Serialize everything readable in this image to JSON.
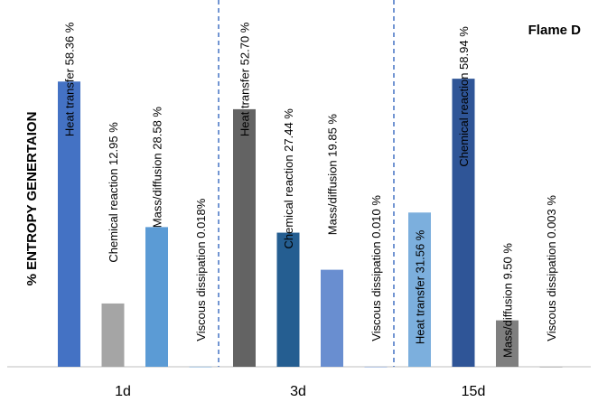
{
  "chart_data": {
    "type": "bar",
    "title": "Flame D",
    "ylabel": "% ENTROPY GENERTAION",
    "xlabel": "",
    "ylim": [
      0,
      60
    ],
    "grid": false,
    "groups": [
      {
        "category": "1d",
        "bars": [
          {
            "label": "Heat transfer 58.36 %",
            "value": 58.36,
            "color": "#4472C4"
          },
          {
            "label": "Chemical reaction  12.95 %",
            "value": 12.95,
            "color": "#A5A5A5"
          },
          {
            "label": "Mass/diffusion 28.58 %",
            "value": 28.58,
            "color": "#5B9BD5"
          },
          {
            "label": "Viscous dissipation  0.018%",
            "value": 0.018,
            "color": "#5B9BD5"
          }
        ]
      },
      {
        "category": "3d",
        "bars": [
          {
            "label": "Heat transfer 52.70 %",
            "value": 52.7,
            "color": "#636363"
          },
          {
            "label": "Chemical reaction 27.44 %",
            "value": 27.44,
            "color": "#255E91"
          },
          {
            "label": "Mass/diffusion 19.85 %",
            "value": 19.85,
            "color": "#698ED0"
          },
          {
            "label": "Viscous dissipation 0.010 %",
            "value": 0.01,
            "color": "#698ED0"
          }
        ]
      },
      {
        "category": "15d",
        "bars": [
          {
            "label": "Heat transfer 31.56 %",
            "value": 31.56,
            "color": "#7CAFDD"
          },
          {
            "label": "Chemical reaction  58.94 %",
            "value": 58.94,
            "color": "#2F5597"
          },
          {
            "label": "Mass/diffusion  9.50 %",
            "value": 9.5,
            "color": "#7F7F7F"
          },
          {
            "label": "Viscous dissipation 0.003 %",
            "value": 0.003,
            "color": "#7F7F7F"
          }
        ]
      }
    ],
    "colors": {
      "separator": "#4472C4",
      "axis": "#BFBFBF"
    }
  }
}
